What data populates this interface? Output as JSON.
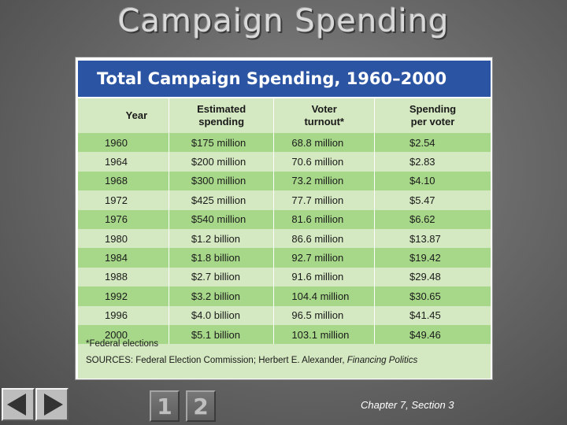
{
  "slide": {
    "title": "Campaign Spending"
  },
  "table": {
    "title": "Total Campaign Spending, 1960–2000",
    "headers": {
      "year": "Year",
      "spending_line1": "Estimated",
      "spending_line2": "spending",
      "turnout_line1": "Voter",
      "turnout_line2": "turnout*",
      "per_voter_line1": "Spending",
      "per_voter_line2": "per voter"
    },
    "rows": [
      {
        "year": "1960",
        "spending": "$175 million",
        "turnout": "68.8 million",
        "per_voter": "$2.54"
      },
      {
        "year": "1964",
        "spending": "$200 million",
        "turnout": "70.6 million",
        "per_voter": "$2.83"
      },
      {
        "year": "1968",
        "spending": "$300 million",
        "turnout": "73.2 million",
        "per_voter": "$4.10"
      },
      {
        "year": "1972",
        "spending": "$425 million",
        "turnout": "77.7 million",
        "per_voter": "$5.47"
      },
      {
        "year": "1976",
        "spending": "$540 million",
        "turnout": "81.6 million",
        "per_voter": "$6.62"
      },
      {
        "year": "1980",
        "spending": "$1.2 billion",
        "turnout": "86.6 million",
        "per_voter": "$13.87"
      },
      {
        "year": "1984",
        "spending": "$1.8 billion",
        "turnout": "92.7 million",
        "per_voter": "$19.42"
      },
      {
        "year": "1988",
        "spending": "$2.7 billion",
        "turnout": "91.6 million",
        "per_voter": "$29.48"
      },
      {
        "year": "1992",
        "spending": "$3.2 billion",
        "turnout": "104.4 million",
        "per_voter": "$30.65"
      },
      {
        "year": "1996",
        "spending": "$4.0 billion",
        "turnout": "96.5 million",
        "per_voter": "$41.45"
      },
      {
        "year": "2000",
        "spending": "$5.1 billion",
        "turnout": "103.1 million",
        "per_voter": "$49.46"
      }
    ],
    "footnote": "*Federal elections",
    "sources_prefix": "SOURCES: Federal Election Commission; Herbert E. Alexander, ",
    "sources_italic": "Financing Politics"
  },
  "navigation": {
    "prev_icon": "triangle-left-icon",
    "next_icon": "triangle-right-icon",
    "page1_label": "1",
    "page2_label": "2"
  },
  "footer": {
    "chapter": "Chapter 7, Section 3"
  },
  "colors": {
    "header_blue": "#2b55a3",
    "row_dark_green": "#a7d88a",
    "row_light_green": "#d4e8c1"
  }
}
